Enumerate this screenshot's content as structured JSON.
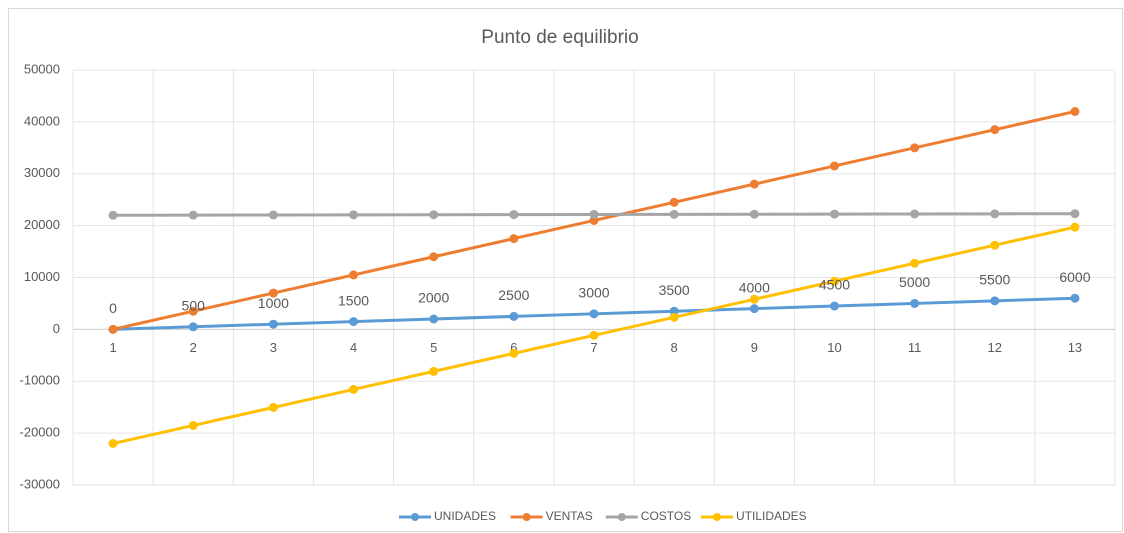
{
  "chart_data": {
    "type": "line",
    "title": "Punto de equilibrio",
    "categories": [
      1,
      2,
      3,
      4,
      5,
      6,
      7,
      8,
      9,
      10,
      11,
      12,
      13
    ],
    "series": [
      {
        "name": "UNIDADES",
        "color": "#5b9bd5",
        "data_labels": true,
        "values": [
          0,
          500,
          1000,
          1500,
          2000,
          2500,
          3000,
          3500,
          4000,
          4500,
          5000,
          5500,
          6000
        ]
      },
      {
        "name": "VENTAS",
        "color": "#ed7d31",
        "data_labels": false,
        "values": [
          0,
          3500,
          7000,
          10500,
          14000,
          17500,
          21000,
          24500,
          28000,
          31500,
          35000,
          38500,
          42000
        ]
      },
      {
        "name": "COSTOS",
        "color": "#a5a5a5",
        "data_labels": false,
        "values": [
          22000,
          22025,
          22050,
          22075,
          22100,
          22125,
          22150,
          22175,
          22200,
          22225,
          22250,
          22275,
          22300
        ]
      },
      {
        "name": "UTILIDADES",
        "color": "#ffc000",
        "data_labels": false,
        "values": [
          -22000,
          -18525,
          -15050,
          -11575,
          -8100,
          -4625,
          -1150,
          2325,
          5800,
          9275,
          12750,
          16225,
          19700
        ]
      }
    ],
    "ylim": [
      -30000,
      50000
    ],
    "yticks": [
      -30000,
      -20000,
      -10000,
      0,
      10000,
      20000,
      30000,
      40000,
      50000
    ],
    "grid": true,
    "legend": "bottom"
  }
}
